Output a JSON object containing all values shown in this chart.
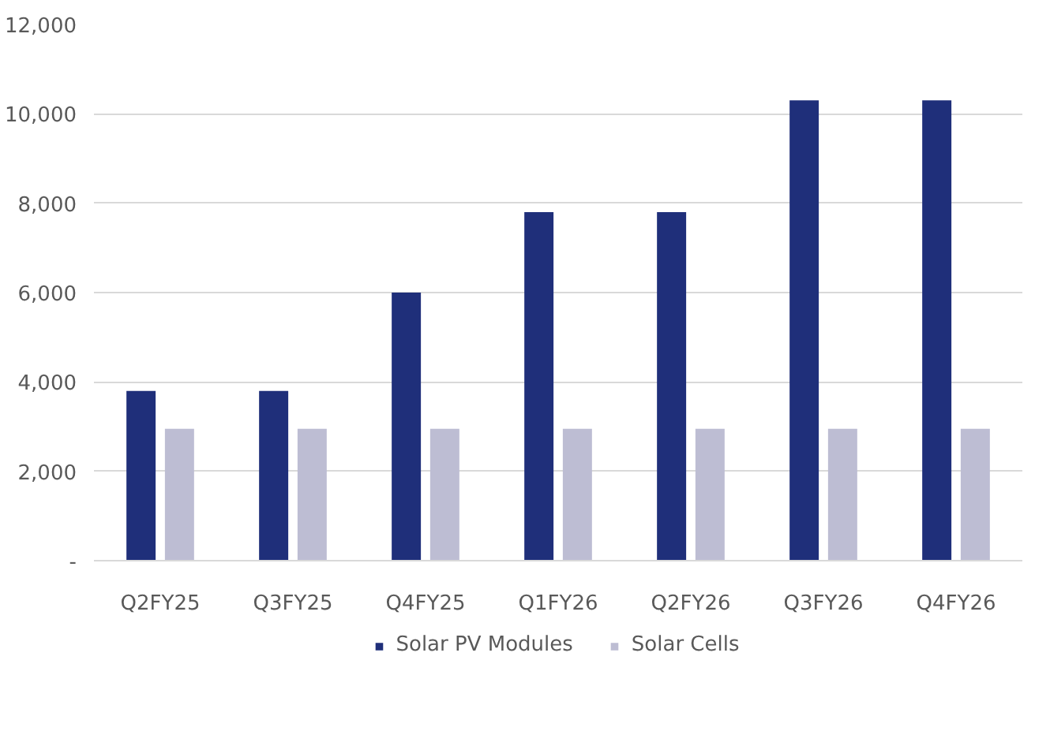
{
  "chart_data": {
    "type": "bar",
    "categories": [
      "Q2FY25",
      "Q3FY25",
      "Q4FY25",
      "Q1FY26",
      "Q2FY26",
      "Q3FY26",
      "Q4FY26"
    ],
    "series": [
      {
        "name": "Solar PV Modules",
        "color": "#1f2f7a",
        "values": [
          3800,
          3800,
          6000,
          7800,
          7800,
          10300,
          10300
        ]
      },
      {
        "name": "Solar Cells",
        "color": "#bdbdd3",
        "values": [
          2950,
          2950,
          2950,
          2950,
          2950,
          2950,
          2950
        ]
      }
    ],
    "ylim": [
      0,
      12000
    ],
    "yticks": [
      {
        "value": 0,
        "label": "-"
      },
      {
        "value": 2000,
        "label": "2,000"
      },
      {
        "value": 4000,
        "label": "4,000"
      },
      {
        "value": 6000,
        "label": "6,000"
      },
      {
        "value": 8000,
        "label": "8,000"
      },
      {
        "value": 10000,
        "label": "10,000"
      },
      {
        "value": 12000,
        "label": "12,000"
      }
    ],
    "grid": "y",
    "legend": "bottom"
  }
}
